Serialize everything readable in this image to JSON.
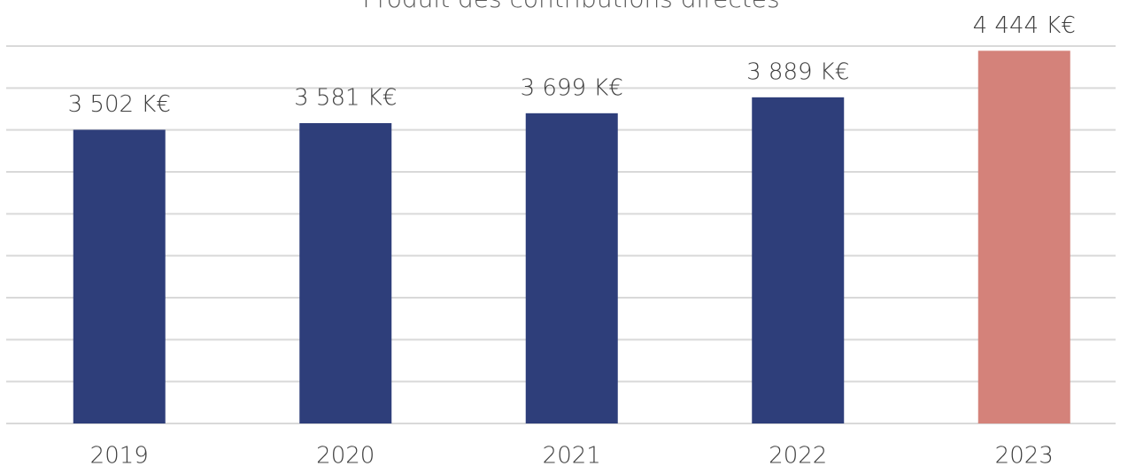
{
  "chart_data": {
    "type": "bar",
    "title": "Produit des contributions directes",
    "categories": [
      "2019",
      "2020",
      "2021",
      "2022",
      "2023"
    ],
    "values": [
      3502,
      3581,
      3699,
      3889,
      4444
    ],
    "value_labels": [
      "3 502 K€",
      "3 581 K€",
      "3 699 K€",
      "3 889 K€",
      "4 444 K€"
    ],
    "colors": [
      "#2e3e7a",
      "#2e3e7a",
      "#2e3e7a",
      "#2e3e7a",
      "#d4827a"
    ],
    "ylim": [
      0,
      4500
    ],
    "yticks": [
      0,
      500,
      1000,
      1500,
      2000,
      2500,
      3000,
      3500,
      4000,
      4500
    ],
    "grid": true
  }
}
